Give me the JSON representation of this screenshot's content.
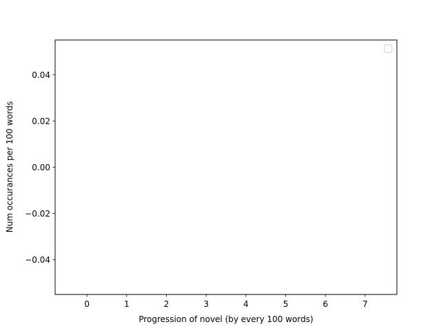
{
  "chart_data": {
    "type": "line",
    "title": "",
    "xlabel": "Progression of novel (by every 100 words)",
    "ylabel": "Num occurances per 100 words",
    "xlim": [
      -0.8,
      7.8
    ],
    "ylim": [
      -0.055,
      0.055
    ],
    "x_ticks": [
      0,
      1,
      2,
      3,
      4,
      5,
      6,
      7
    ],
    "x_tick_labels": [
      "0",
      "1",
      "2",
      "3",
      "4",
      "5",
      "6",
      "7"
    ],
    "y_ticks": [
      -0.04,
      -0.02,
      0.0,
      0.02,
      0.04
    ],
    "y_tick_labels": [
      "−0.04",
      "−0.02",
      "0.00",
      "0.02",
      "0.04"
    ],
    "series": [],
    "grid": false,
    "legend": {
      "placement": "top-right",
      "entries": []
    }
  }
}
